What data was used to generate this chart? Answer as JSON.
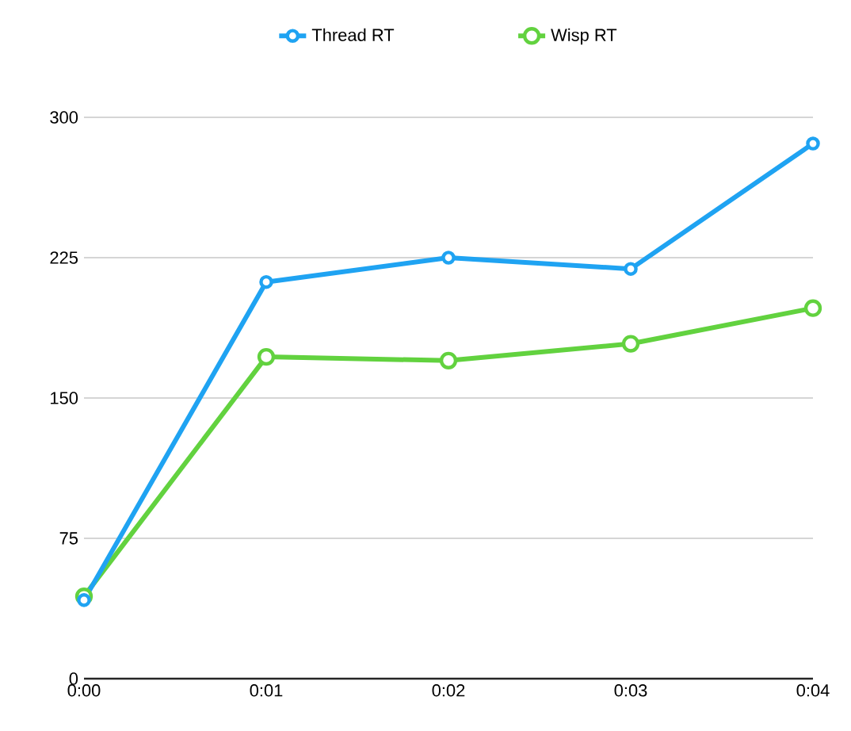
{
  "chart_data": {
    "type": "line",
    "categories": [
      "0:00",
      "0:01",
      "0:02",
      "0:03",
      "0:04"
    ],
    "series": [
      {
        "name": "Thread RT",
        "color": "#1fa3f2",
        "values": [
          42,
          212,
          225,
          219,
          286
        ]
      },
      {
        "name": "Wisp RT",
        "color": "#62d23f",
        "values": [
          44,
          172,
          170,
          179,
          198
        ]
      }
    ],
    "ylim": [
      0,
      300
    ],
    "yticks": [
      0,
      75,
      150,
      225,
      300
    ],
    "grid": "y",
    "legend": "top",
    "marker": "circle",
    "line_style": "solid"
  }
}
